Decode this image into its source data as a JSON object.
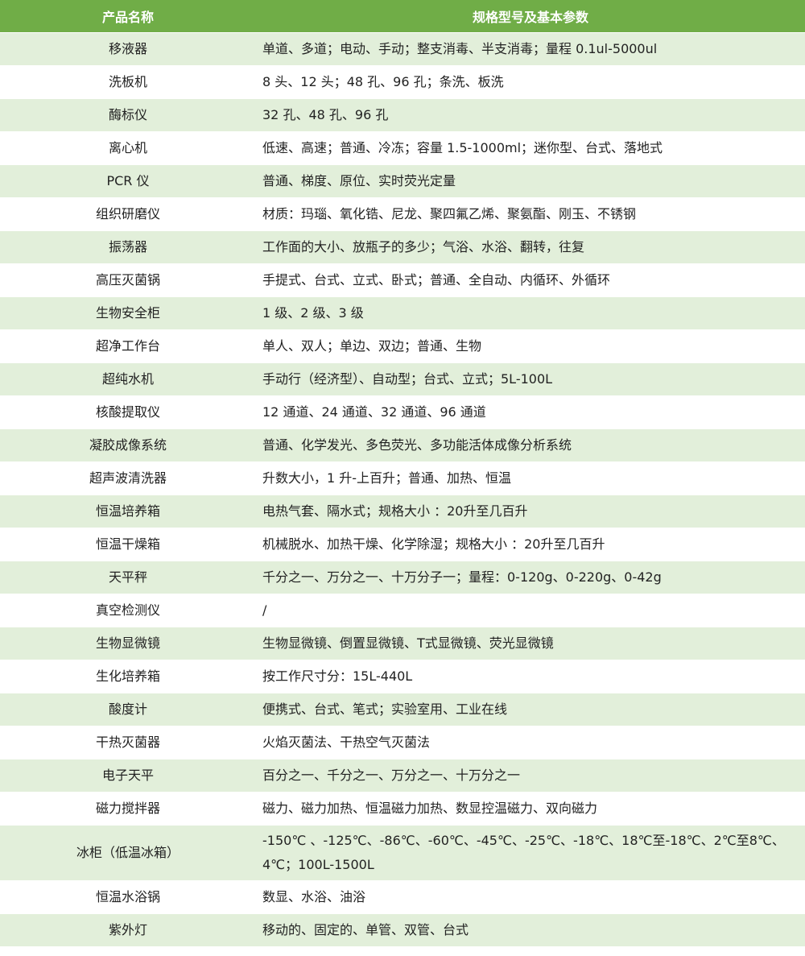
{
  "header": {
    "col1": "产品名称",
    "col2": "规格型号及基本参数"
  },
  "colors": {
    "header_bg": "#70ad47",
    "alt_row_bg": "#e2efda"
  },
  "rows": [
    {
      "name": "移液器",
      "spec": "单道、多道；电动、手动；整支消毒、半支消毒；量程 0.1ul-5000ul"
    },
    {
      "name": "洗板机",
      "spec": "8 头、12 头；48 孔、96 孔；条洗、板洗"
    },
    {
      "name": "酶标仪",
      "spec": "32 孔、48 孔、96 孔"
    },
    {
      "name": "离心机",
      "spec": "低速、高速；普通、冷冻；容量 1.5-1000ml；迷你型、台式、落地式"
    },
    {
      "name": "PCR 仪",
      "spec": "普通、梯度、原位、实时荧光定量"
    },
    {
      "name": "组织研磨仪",
      "spec": "材质：玛瑙、氧化锆、尼龙、聚四氟乙烯、聚氨酯、刚玉、不锈钢"
    },
    {
      "name": "振荡器",
      "spec": "工作面的大小、放瓶子的多少；气浴、水浴、翻转，往复"
    },
    {
      "name": "高压灭菌锅",
      "spec": "手提式、台式、立式、卧式；普通、全自动、内循环、外循环"
    },
    {
      "name": "生物安全柜",
      "spec": "1 级、2 级、3 级"
    },
    {
      "name": "超净工作台",
      "spec": "单人、双人；单边、双边；普通、生物"
    },
    {
      "name": "超纯水机",
      "spec": "手动行（经济型）、自动型；台式、立式；5L-100L"
    },
    {
      "name": "核酸提取仪",
      "spec": "12 通道、24 通道、32 通道、96 通道"
    },
    {
      "name": "凝胶成像系统",
      "spec": "普通、化学发光、多色荧光、多功能活体成像分析系统"
    },
    {
      "name": "超声波清洗器",
      "spec": "升数大小，1 升-上百升；普通、加热、恒温"
    },
    {
      "name": "恒温培养箱",
      "spec": "电热气套、隔水式；规格大小 ：20升至几百升"
    },
    {
      "name": "恒温干燥箱",
      "spec": "机械脱水、加热干燥、化学除湿；规格大小 ：20升至几百升"
    },
    {
      "name": "天平秤",
      "spec": "千分之一、万分之一、十万分子一；量程：0-120g、0-220g、0-42g"
    },
    {
      "name": "真空检测仪",
      "spec": "/"
    },
    {
      "name": "生物显微镜",
      "spec": "生物显微镜、倒置显微镜、T式显微镜、荧光显微镜"
    },
    {
      "name": "生化培养箱",
      "spec": "按工作尺寸分：15L-440L"
    },
    {
      "name": "酸度计",
      "spec": "便携式、台式、笔式；实验室用、工业在线"
    },
    {
      "name": "干热灭菌器",
      "spec": "火焰灭菌法、干热空气灭菌法"
    },
    {
      "name": "电子天平",
      "spec": "百分之一、千分之一、万分之一、十万分之一"
    },
    {
      "name": "磁力搅拌器",
      "spec": "磁力、磁力加热、恒温磁力加热、数显控温磁力、双向磁力"
    },
    {
      "name": "冰柜（低温冰箱）",
      "spec": "-150℃ 、-125℃、-86℃、-60℃、-45℃、-25℃、-18℃、18℃至-18℃、2℃至8℃、4℃；100L-1500L"
    },
    {
      "name": "恒温水浴锅",
      "spec": "数显、水浴、油浴"
    },
    {
      "name": "紫外灯",
      "spec": "移动的、固定的、单管、双管、台式"
    }
  ]
}
